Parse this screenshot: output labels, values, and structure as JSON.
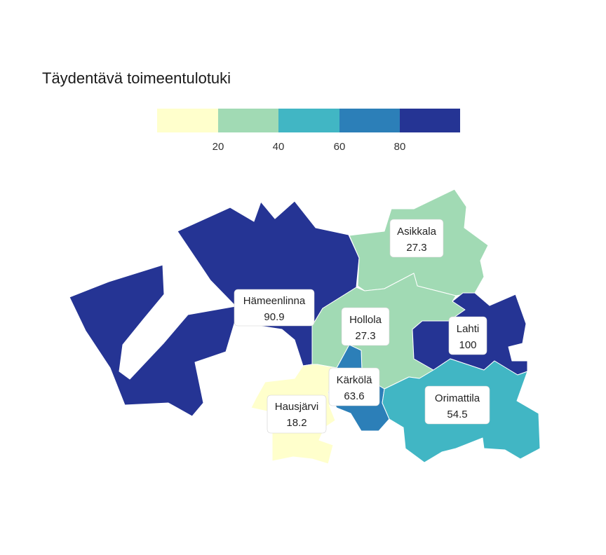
{
  "title": "Täydentävä toimeentulotuki",
  "legend": {
    "ticks": [
      "20",
      "40",
      "60",
      "80"
    ],
    "colors": [
      "#ffffcc",
      "#a1dab4",
      "#41b6c4",
      "#2c7fb8",
      "#253494"
    ]
  },
  "regions": [
    {
      "name": "Hämeenlinna",
      "value": "90.9",
      "color": "#253494"
    },
    {
      "name": "Asikkala",
      "value": "27.3",
      "color": "#a1dab4"
    },
    {
      "name": "Hollola",
      "value": "27.3",
      "color": "#a1dab4"
    },
    {
      "name": "Lahti",
      "value": "100",
      "color": "#253494"
    },
    {
      "name": "Kärkölä",
      "value": "63.6",
      "color": "#2c7fb8"
    },
    {
      "name": "Orimattila",
      "value": "54.5",
      "color": "#41b6c4"
    },
    {
      "name": "Hausjärvi",
      "value": "18.2",
      "color": "#ffffcc"
    }
  ]
}
